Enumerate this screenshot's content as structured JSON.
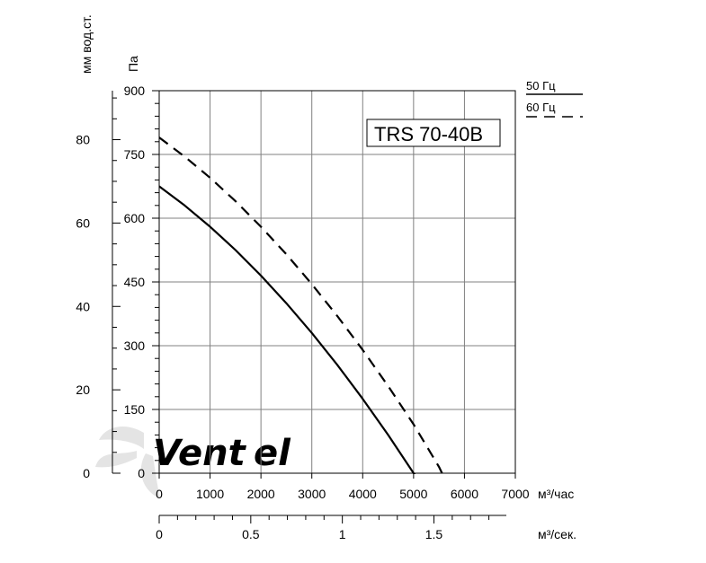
{
  "chart_data": {
    "type": "line",
    "model_label": "TRS 70-40B",
    "x_unit_label": "м³/час",
    "x2_unit_label": "м³/сек.",
    "y_unit_label": "Па",
    "y2_unit_label": "мм вод.ст.",
    "x_ticks": [
      0,
      1000,
      2000,
      3000,
      4000,
      5000,
      6000,
      7000
    ],
    "x2_ticks": [
      "0",
      "0.5",
      "1",
      "1.5"
    ],
    "x2_tick_values": [
      0,
      0.5,
      1,
      1.5
    ],
    "y_ticks": [
      0,
      150,
      300,
      450,
      600,
      750,
      900
    ],
    "y2_ticks": [
      0,
      20,
      40,
      60,
      80
    ],
    "xlim": [
      0,
      7000
    ],
    "ylim": [
      0,
      900
    ],
    "y2_scale_pa_per_mm": 9.81,
    "grid": true,
    "legend_position": "top-right",
    "series": [
      {
        "name": "50 Гц",
        "style": "solid",
        "x": [
          0,
          500,
          1000,
          1500,
          2000,
          2500,
          3000,
          3500,
          4000,
          4500,
          5000,
          5400
        ],
        "y": [
          675,
          630,
          580,
          525,
          465,
          400,
          330,
          255,
          175,
          90,
          0,
          -60
        ]
      },
      {
        "name": "60 Гц",
        "style": "dashed",
        "x": [
          0,
          500,
          1000,
          1500,
          2000,
          2500,
          3000,
          3500,
          4000,
          4500,
          5000,
          5500,
          5800
        ],
        "y": [
          790,
          745,
          695,
          640,
          580,
          515,
          445,
          370,
          290,
          205,
          115,
          15,
          -60
        ]
      }
    ]
  },
  "watermark": {
    "text_part1": "Vent",
    "text_part2": "el"
  },
  "colors": {
    "line": "#000000",
    "grid": "#808080",
    "watermark": "#d9d9d9",
    "watermark_accent": "#a9c7e8"
  }
}
